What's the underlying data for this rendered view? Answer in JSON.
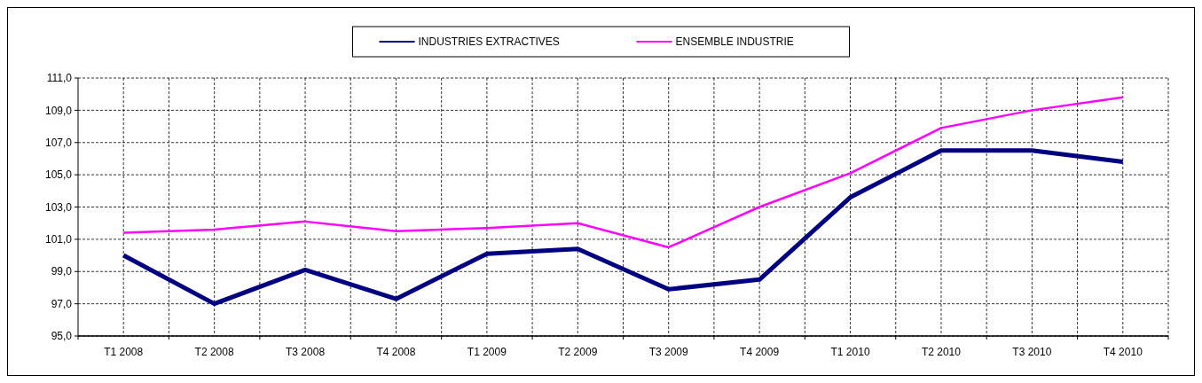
{
  "chart_data": {
    "type": "line",
    "categories": [
      "T1 2008",
      "T2 2008",
      "T3 2008",
      "T4 2008",
      "T1 2009",
      "T2 2009",
      "T3 2009",
      "T4 2009",
      "T1 2010",
      "T2 2010",
      "T3 2010",
      "T4 2010"
    ],
    "series": [
      {
        "name": "INDUSTRIES EXTRACTIVES",
        "color": "#000080",
        "values": [
          100.0,
          97.0,
          99.1,
          97.3,
          100.1,
          100.4,
          97.9,
          98.5,
          103.6,
          106.5,
          106.5,
          105.8
        ]
      },
      {
        "name": "ENSEMBLE INDUSTRIE",
        "color": "#ff00ff",
        "values": [
          101.4,
          101.6,
          102.1,
          101.5,
          101.7,
          102.0,
          100.5,
          103.0,
          105.1,
          107.9,
          109.0,
          109.8
        ]
      }
    ],
    "ylim": [
      95,
      111
    ],
    "yticks": [
      {
        "value": 95,
        "label": "95,0"
      },
      {
        "value": 97,
        "label": "97,0"
      },
      {
        "value": 99,
        "label": "99,0"
      },
      {
        "value": 101,
        "label": "101,0"
      },
      {
        "value": 103,
        "label": "103,0"
      },
      {
        "value": 105,
        "label": "105,0"
      },
      {
        "value": 107,
        "label": "107,0"
      },
      {
        "value": 109,
        "label": "109,0"
      },
      {
        "value": 111,
        "label": "111,0"
      }
    ],
    "grid": true,
    "legend": "top",
    "marker": "none",
    "line_style": "solid"
  }
}
